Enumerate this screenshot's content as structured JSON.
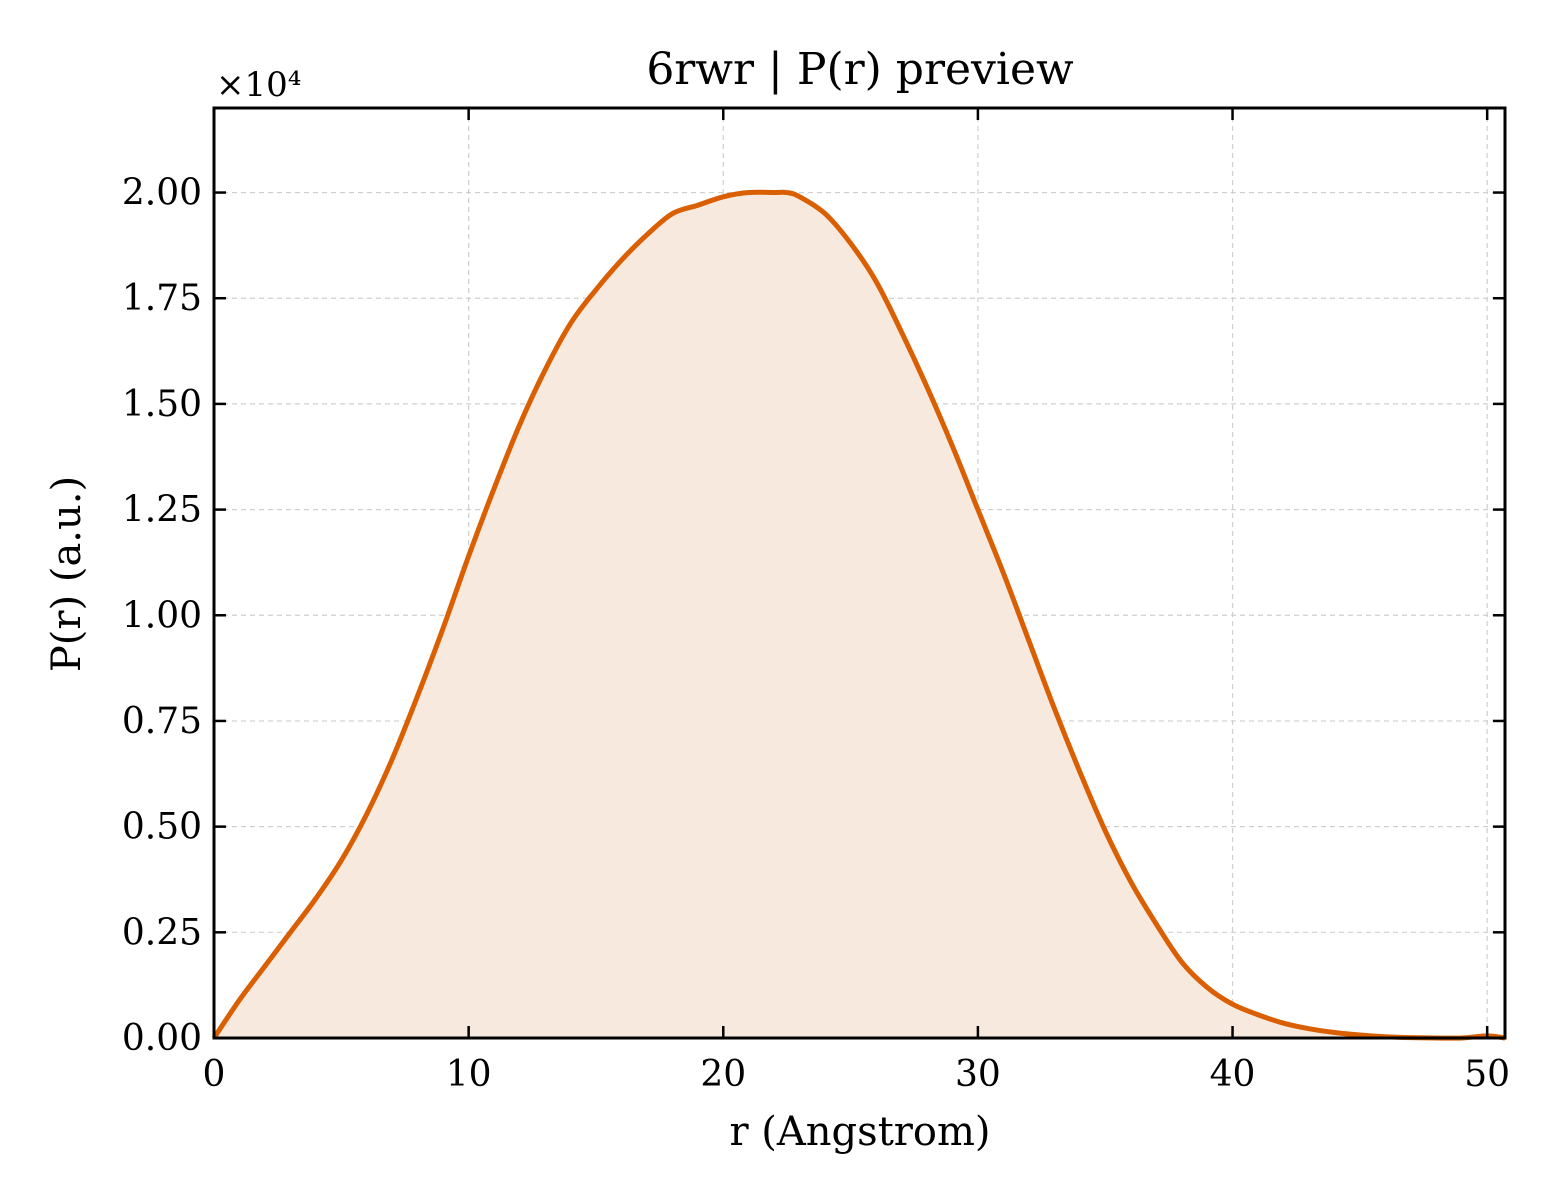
{
  "chart_data": {
    "type": "area",
    "title": "6rwr | P(r) preview",
    "xlabel": "r (Angstrom)",
    "ylabel": "P(r) (a.u.)",
    "y_offset_label": "×10⁴",
    "xlim": [
      0,
      50.7
    ],
    "ylim": [
      0,
      2.2
    ],
    "x_ticks": [
      0,
      10,
      20,
      30,
      40,
      50
    ],
    "x_tick_labels": [
      "0",
      "10",
      "20",
      "30",
      "40",
      "50"
    ],
    "y_ticks": [
      0,
      0.25,
      0.5,
      0.75,
      1.0,
      1.25,
      1.5,
      1.75,
      2.0
    ],
    "y_tick_labels": [
      "0.00",
      "0.25",
      "0.50",
      "0.75",
      "1.00",
      "1.25",
      "1.50",
      "1.75",
      "2.00"
    ],
    "grid": true,
    "line_color": "#d95f02",
    "fill_color": "#f8e9de",
    "series": [
      {
        "x": [
          0,
          1,
          2,
          3,
          4,
          5,
          6,
          7,
          8,
          9,
          10,
          11,
          12,
          13,
          14,
          15,
          16,
          17,
          18,
          19,
          20,
          21,
          22,
          22.5,
          23,
          24,
          25,
          26,
          27,
          28,
          29,
          30,
          31,
          32,
          33,
          34,
          35,
          36,
          37,
          38,
          39,
          40,
          41,
          42,
          43,
          44,
          45,
          46,
          47,
          48,
          49,
          50,
          50.7
        ],
        "y": [
          0.0,
          0.09,
          0.17,
          0.25,
          0.33,
          0.42,
          0.53,
          0.66,
          0.81,
          0.97,
          1.14,
          1.3,
          1.45,
          1.58,
          1.69,
          1.77,
          1.84,
          1.9,
          1.95,
          1.97,
          1.99,
          2.0,
          2.0,
          2.0,
          1.99,
          1.95,
          1.88,
          1.79,
          1.67,
          1.54,
          1.4,
          1.25,
          1.1,
          0.94,
          0.78,
          0.63,
          0.49,
          0.37,
          0.27,
          0.18,
          0.12,
          0.08,
          0.055,
          0.035,
          0.022,
          0.013,
          0.007,
          0.003,
          0.001,
          0.0,
          0.0,
          0.005,
          0.0
        ]
      }
    ]
  }
}
